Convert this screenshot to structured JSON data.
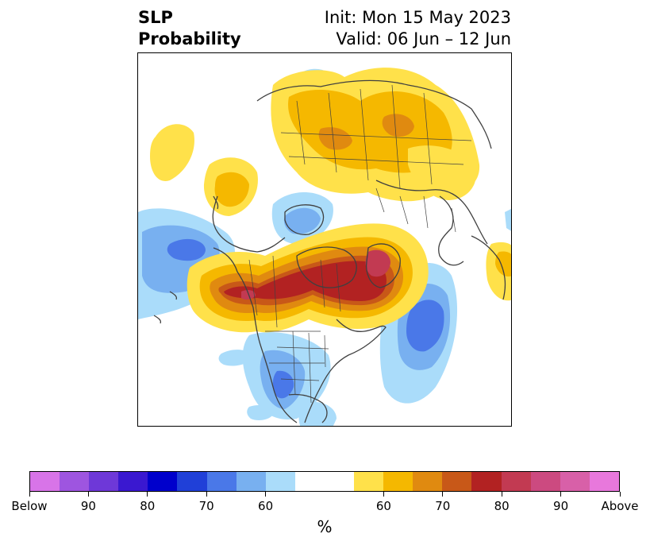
{
  "title": {
    "left_line1": "SLP",
    "left_line2": "Probability",
    "right_line1": "Init: Mon 15 May 2023",
    "right_line2": "Valid: 06 Jun – 12 Jun"
  },
  "colorbar": {
    "colors": [
      "#d874e8",
      "#9e55e0",
      "#6e38d8",
      "#3a18d0",
      "#0000cc",
      "#2040d8",
      "#4a78e8",
      "#78b0f0",
      "#aadcfa",
      "#ffffff",
      "#ffffff",
      "#ffe14a",
      "#f5b800",
      "#e08a10",
      "#c85818",
      "#b22222",
      "#c23a52",
      "#cc4a80",
      "#d860a8",
      "#e878dc"
    ],
    "tick_labels": [
      "Below",
      "90",
      "80",
      "70",
      "60",
      "60",
      "70",
      "80",
      "90",
      "Above"
    ],
    "unit": "%"
  },
  "map_layers": {
    "below_60": "#aadcfa",
    "below_70": "#78b0f0",
    "below_80": "#4a78e8",
    "above_60": "#ffe14a",
    "above_70": "#f5b800",
    "above_80": "#e08a10",
    "above_90": "#c85818",
    "above_90b": "#b22222",
    "above_max": "#c23a52",
    "coastline": "#404040"
  }
}
